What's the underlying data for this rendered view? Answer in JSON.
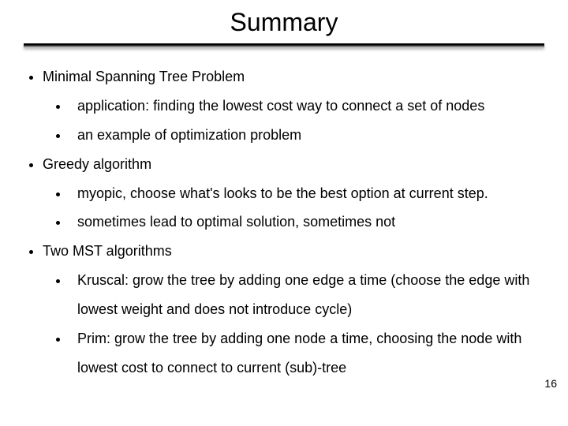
{
  "slide": {
    "title": "Summary",
    "title_fontsize": 32,
    "body_fontsize": 18,
    "line_height": 2.05,
    "background_color": "#ffffff",
    "text_color": "#000000",
    "rule_gradient": [
      "#000000",
      "#666666",
      "#dddddd"
    ],
    "page_number": "16",
    "bullets": [
      {
        "text": "Minimal Spanning Tree Problem",
        "children": [
          {
            "text": "application: finding the lowest cost way to connect a set of nodes"
          },
          {
            "text": "an example of optimization problem"
          }
        ]
      },
      {
        "text": "Greedy algorithm",
        "children": [
          {
            "text": "myopic, choose what's looks to be the best option at current step."
          },
          {
            "text": "sometimes lead to optimal solution, sometimes not"
          }
        ]
      },
      {
        "text": "Two MST algorithms",
        "children": [
          {
            "text": "Kruscal: grow the tree by adding one edge a time (choose the edge with lowest weight and does not introduce cycle)"
          },
          {
            "text": "Prim: grow the tree by adding one node a time, choosing the node with lowest cost to connect to current (sub)-tree"
          }
        ]
      }
    ]
  }
}
